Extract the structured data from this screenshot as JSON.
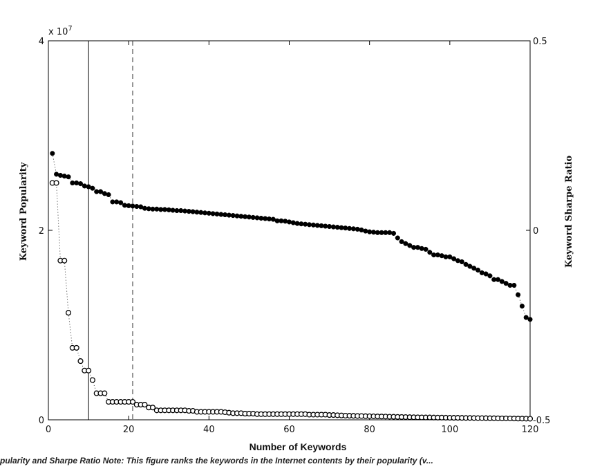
{
  "chart_data": {
    "type": "scatter",
    "xlabel": "Number of Keywords",
    "ylabel_left": "Keyword Popularity",
    "ylabel_right": "Keyword Sharpe Ratio",
    "exponent_label": "x 10",
    "exponent_power": "7",
    "xlim": [
      0,
      120
    ],
    "ylim_left": [
      0,
      40000000
    ],
    "ylim_right": [
      -0.5,
      0.5
    ],
    "x_ticks": [
      "0",
      "20",
      "40",
      "60",
      "80",
      "100",
      "120"
    ],
    "y_left_ticks": [
      "0",
      "2",
      "4"
    ],
    "y_right_ticks": [
      "-0.5",
      "0",
      "0.5"
    ],
    "solid_vline_x": 10,
    "dashed_vline_x": 21,
    "grid": false,
    "series": [
      {
        "marker": "open-circle",
        "axis": "left",
        "x": [
          1,
          2,
          3,
          4,
          5,
          6,
          7,
          8,
          9,
          10,
          11,
          12,
          13,
          14,
          15,
          16,
          17,
          18,
          19,
          20,
          21,
          22,
          23,
          24,
          25,
          26,
          27,
          28,
          29,
          30,
          31,
          32,
          33,
          34,
          35,
          36,
          37,
          38,
          39,
          40,
          41,
          42,
          43,
          44,
          45,
          46,
          47,
          48,
          49,
          50,
          51,
          52,
          53,
          54,
          55,
          56,
          57,
          58,
          59,
          60,
          61,
          62,
          63,
          64,
          65,
          66,
          67,
          68,
          69,
          70,
          71,
          72,
          73,
          74,
          75,
          76,
          77,
          78,
          79,
          80,
          81,
          82,
          83,
          84,
          85,
          86,
          87,
          88,
          89,
          90,
          91,
          92,
          93,
          94,
          95,
          96,
          97,
          98,
          99,
          100,
          101,
          102,
          103,
          104,
          105,
          106,
          107,
          108,
          109,
          110,
          111,
          112,
          113,
          114,
          115,
          116,
          117,
          118,
          119,
          120
        ],
        "values": [
          25000000,
          25000000,
          16800000,
          16800000,
          11300000,
          7600000,
          7600000,
          6200000,
          5200000,
          5200000,
          4200000,
          2800000,
          2800000,
          2800000,
          1900000,
          1900000,
          1900000,
          1900000,
          1900000,
          1900000,
          1900000,
          1600000,
          1600000,
          1600000,
          1300000,
          1300000,
          1000000,
          1000000,
          1000000,
          1000000,
          1000000,
          1000000,
          1000000,
          1000000,
          950000,
          950000,
          850000,
          850000,
          850000,
          850000,
          850000,
          850000,
          850000,
          800000,
          750000,
          700000,
          700000,
          700000,
          650000,
          650000,
          650000,
          600000,
          600000,
          600000,
          600000,
          600000,
          600000,
          600000,
          600000,
          600000,
          600000,
          600000,
          600000,
          600000,
          550000,
          550000,
          550000,
          550000,
          550000,
          500000,
          500000,
          480000,
          460000,
          440000,
          430000,
          420000,
          410000,
          400000,
          390000,
          380000,
          370000,
          360000,
          350000,
          340000,
          330000,
          320000,
          310000,
          300000,
          290000,
          280000,
          270000,
          260000,
          255000,
          250000,
          245000,
          240000,
          235000,
          230000,
          225000,
          220000,
          215000,
          210000,
          205000,
          200000,
          195000,
          190000,
          185000,
          180000,
          175000,
          170000,
          165000,
          160000,
          155000,
          150000,
          145000,
          140000,
          135000,
          130000,
          125000,
          120000
        ]
      },
      {
        "marker": "filled-circle",
        "axis": "right",
        "x": [
          1,
          2,
          3,
          4,
          5,
          6,
          7,
          8,
          9,
          10,
          11,
          12,
          13,
          14,
          15,
          16,
          17,
          18,
          19,
          20,
          21,
          22,
          23,
          24,
          25,
          26,
          27,
          28,
          29,
          30,
          31,
          32,
          33,
          34,
          35,
          36,
          37,
          38,
          39,
          40,
          41,
          42,
          43,
          44,
          45,
          46,
          47,
          48,
          49,
          50,
          51,
          52,
          53,
          54,
          55,
          56,
          57,
          58,
          59,
          60,
          61,
          62,
          63,
          64,
          65,
          66,
          67,
          68,
          69,
          70,
          71,
          72,
          73,
          74,
          75,
          76,
          77,
          78,
          79,
          80,
          81,
          82,
          83,
          84,
          85,
          86,
          87,
          88,
          89,
          90,
          91,
          92,
          93,
          94,
          95,
          96,
          97,
          98,
          99,
          100,
          101,
          102,
          103,
          104,
          105,
          106,
          107,
          108,
          109,
          110,
          111,
          112,
          113,
          114,
          115,
          116,
          117,
          118,
          119,
          120
        ],
        "values": [
          0.203,
          0.148,
          0.145,
          0.143,
          0.141,
          0.125,
          0.125,
          0.123,
          0.117,
          0.115,
          0.111,
          0.102,
          0.102,
          0.097,
          0.094,
          0.075,
          0.075,
          0.073,
          0.066,
          0.065,
          0.064,
          0.063,
          0.062,
          0.058,
          0.057,
          0.056,
          0.056,
          0.055,
          0.055,
          0.054,
          0.053,
          0.052,
          0.052,
          0.051,
          0.05,
          0.049,
          0.048,
          0.047,
          0.046,
          0.045,
          0.044,
          0.043,
          0.042,
          0.041,
          0.04,
          0.039,
          0.038,
          0.037,
          0.036,
          0.035,
          0.034,
          0.033,
          0.032,
          0.031,
          0.03,
          0.029,
          0.025,
          0.025,
          0.024,
          0.022,
          0.02,
          0.018,
          0.017,
          0.016,
          0.015,
          0.014,
          0.013,
          0.012,
          0.011,
          0.01,
          0.009,
          0.008,
          0.007,
          0.006,
          0.005,
          0.004,
          0.003,
          0.001,
          -0.002,
          -0.004,
          -0.005,
          -0.006,
          -0.006,
          -0.006,
          -0.006,
          -0.008,
          -0.02,
          -0.03,
          -0.035,
          -0.04,
          -0.045,
          -0.045,
          -0.048,
          -0.05,
          -0.058,
          -0.065,
          -0.065,
          -0.067,
          -0.07,
          -0.07,
          -0.075,
          -0.08,
          -0.083,
          -0.09,
          -0.095,
          -0.1,
          -0.105,
          -0.112,
          -0.115,
          -0.12,
          -0.13,
          -0.13,
          -0.135,
          -0.14,
          -0.145,
          -0.145,
          -0.17,
          -0.2,
          -0.23,
          -0.235
        ]
      }
    ]
  },
  "caption": "pularity and Sharpe Ratio Note: This figure ranks the keywords in the Internet contents by their popularity (v..."
}
